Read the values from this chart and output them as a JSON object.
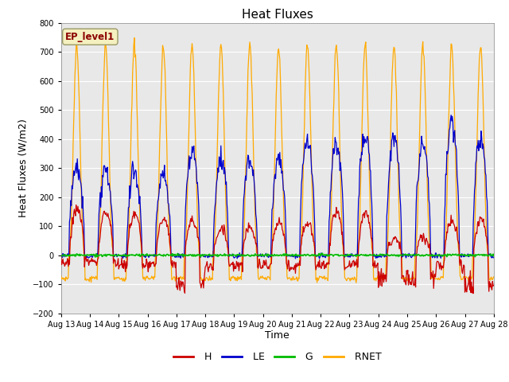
{
  "title": "Heat Fluxes",
  "ylabel": "Heat Fluxes (W/m2)",
  "xlabel": "Time",
  "ylim": [
    -200,
    800
  ],
  "yticks": [
    -200,
    -100,
    0,
    100,
    200,
    300,
    400,
    500,
    600,
    700,
    800
  ],
  "bg_color": "#dcdcdc",
  "plot_bg_color": "#e8e8e8",
  "line_colors": {
    "H": "#cc0000",
    "LE": "#0000cc",
    "G": "#00bb00",
    "RNET": "#ffaa00"
  },
  "legend_label": "EP_level1",
  "n_days": 16
}
